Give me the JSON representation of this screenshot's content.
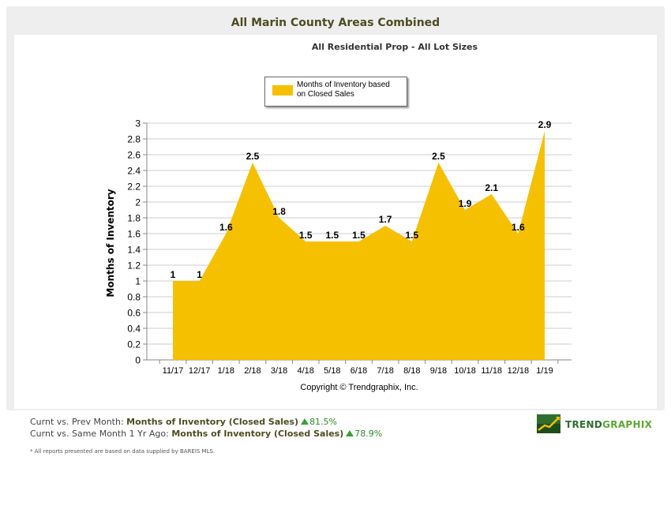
{
  "title": "All Marin County Areas Combined",
  "subtitle": "All Residential Prop - All Lot Sizes",
  "copyright": "Copyright © Trendgraphix, Inc.",
  "colors": {
    "area_fill": "#f5c000",
    "grid": "#cccccc",
    "panel_bg": "#eeeeee",
    "positive": "#2e8b2e"
  },
  "chart_data": {
    "type": "area",
    "categories": [
      "11/17",
      "12/17",
      "1/18",
      "2/18",
      "3/18",
      "4/18",
      "5/18",
      "6/18",
      "7/18",
      "8/18",
      "9/18",
      "10/18",
      "11/18",
      "12/18",
      "1/19"
    ],
    "series": [
      {
        "name": "Months of Inventory based on Closed Sales",
        "values": [
          1,
          1,
          1.6,
          2.5,
          1.8,
          1.5,
          1.5,
          1.5,
          1.7,
          1.5,
          2.5,
          1.9,
          2.1,
          1.6,
          2.9
        ]
      }
    ],
    "value_labels": [
      "1",
      "1",
      "1.6",
      "2.5",
      "1.8",
      "1.5",
      "1.5",
      "1.5",
      "1.7",
      "1.5",
      "2.5",
      "1.9",
      "2.1",
      "1.6",
      "2.9"
    ],
    "ylabel": "Months of Inventory",
    "xlabel": "",
    "ylim": [
      0,
      3
    ],
    "yticks": [
      "0",
      "0.2",
      "0.4",
      "0.6",
      "0.8",
      "1",
      "1.2",
      "1.4",
      "1.6",
      "1.8",
      "2",
      "2.2",
      "2.4",
      "2.6",
      "2.8",
      "3"
    ],
    "grid": true,
    "legend_position": "top-center",
    "legend": [
      "Months of Inventory based",
      "on Closed Sales"
    ]
  },
  "stats": [
    {
      "prefix": "Curnt vs. Prev Month: ",
      "metric": "Months of Inventory (Closed Sales)",
      "change": "81.5%"
    },
    {
      "prefix": "Curnt vs. Same Month 1 Yr Ago: ",
      "metric": "Months of Inventory (Closed Sales)",
      "change": "78.9%"
    }
  ],
  "footnote": "* All reports presented are based on data supplied by BAREIS MLS.",
  "logo": {
    "part1": "TREND",
    "part2": "GRAPHIX"
  }
}
